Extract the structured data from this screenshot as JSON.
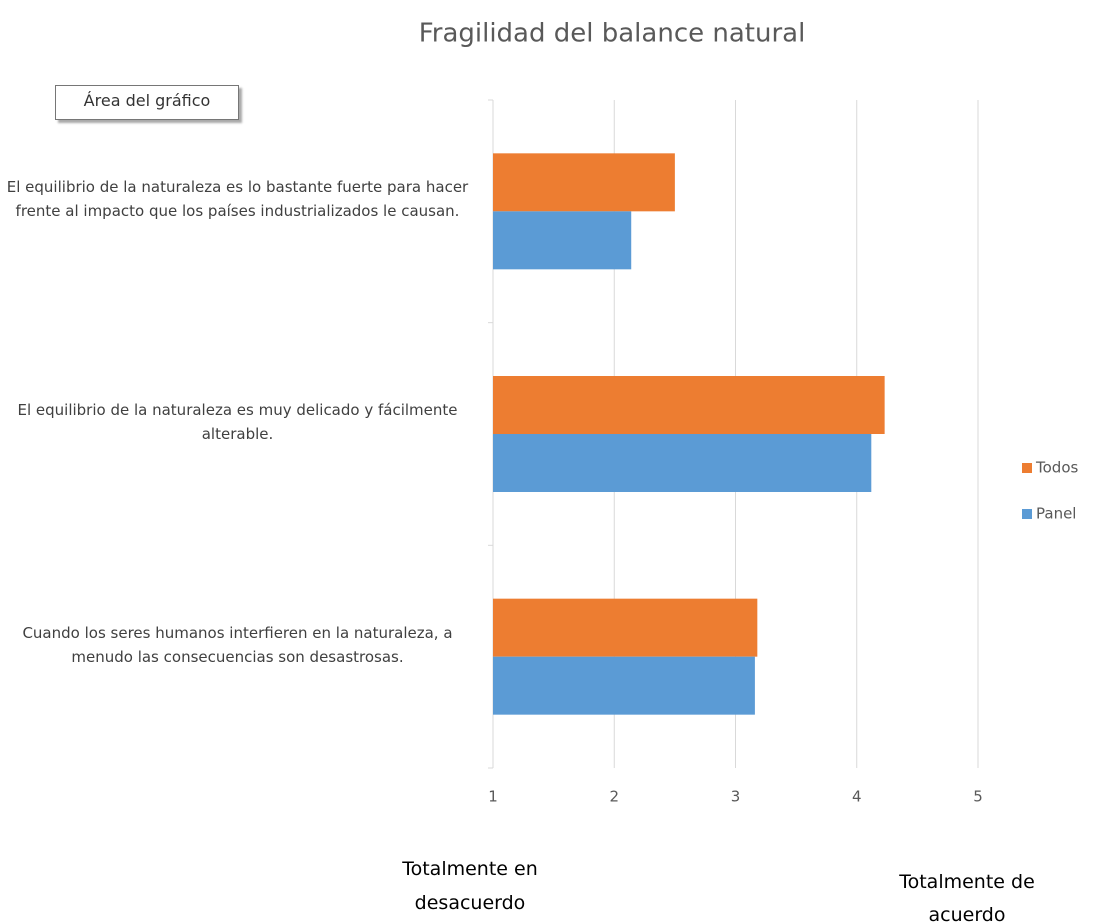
{
  "chart_data": {
    "type": "hbar",
    "title": "Fragilidad del balance natural",
    "tooltip": "Área del gráfico",
    "categories": [
      "El equilibrio de la naturaleza es lo bastante fuerte para hacer frente al impacto que los países industrializados le causan.",
      "El equilibrio de la naturaleza es muy delicado y fácilmente alterable.",
      "Cuando los seres humanos interfieren en la naturaleza, a menudo las consecuencias son desastrosas."
    ],
    "series": [
      {
        "name": "Todos",
        "color": "#ed7d31",
        "values": [
          2.5,
          4.23,
          3.18
        ]
      },
      {
        "name": "Panel",
        "color": "#5b9bd5",
        "values": [
          2.14,
          4.12,
          3.16
        ]
      }
    ],
    "xlim": [
      1,
      5
    ],
    "xticks": [
      1,
      2,
      3,
      4,
      5
    ],
    "grid": true,
    "legend": "right",
    "annotations": [
      "Totalmente en desacuerdo",
      "Totalmente de acuerdo"
    ]
  }
}
